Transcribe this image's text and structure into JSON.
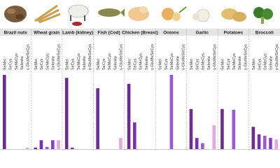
{
  "chart_data": {
    "type": "bar",
    "categories": [
      "Brazil nuts",
      "Wheat grain",
      "Lamb (kidney)",
      "Fish (Cod)",
      "Chicken (Breast)",
      "Onions",
      "Garlic",
      "Potatoes",
      "Broccoli"
    ],
    "series": [
      {
        "name": "SeMet",
        "color": "#6b2d8f",
        "values": [
          100,
          2,
          96,
          82,
          88,
          0,
          54,
          54,
          30
        ]
      },
      {
        "name": "SeCys",
        "color": "#7a2fb0",
        "values": [
          0,
          12,
          2,
          0,
          36,
          0,
          15,
          0,
          20
        ]
      },
      {
        "name": "SeMeCys",
        "color": "#9b59d6",
        "values": [
          0,
          3,
          0,
          0,
          0,
          100,
          8,
          53,
          18
        ]
      },
      {
        "name": "Selenite",
        "color": "#8a3fc4",
        "values": [
          0,
          12,
          0,
          0,
          0,
          0,
          0,
          0,
          15
        ]
      },
      {
        "name": "γ-GluMeSeCys",
        "color": "#e6a6e6",
        "values": [
          2,
          12,
          0,
          15,
          0,
          0,
          32,
          0,
          13
        ]
      }
    ]
  }
}
